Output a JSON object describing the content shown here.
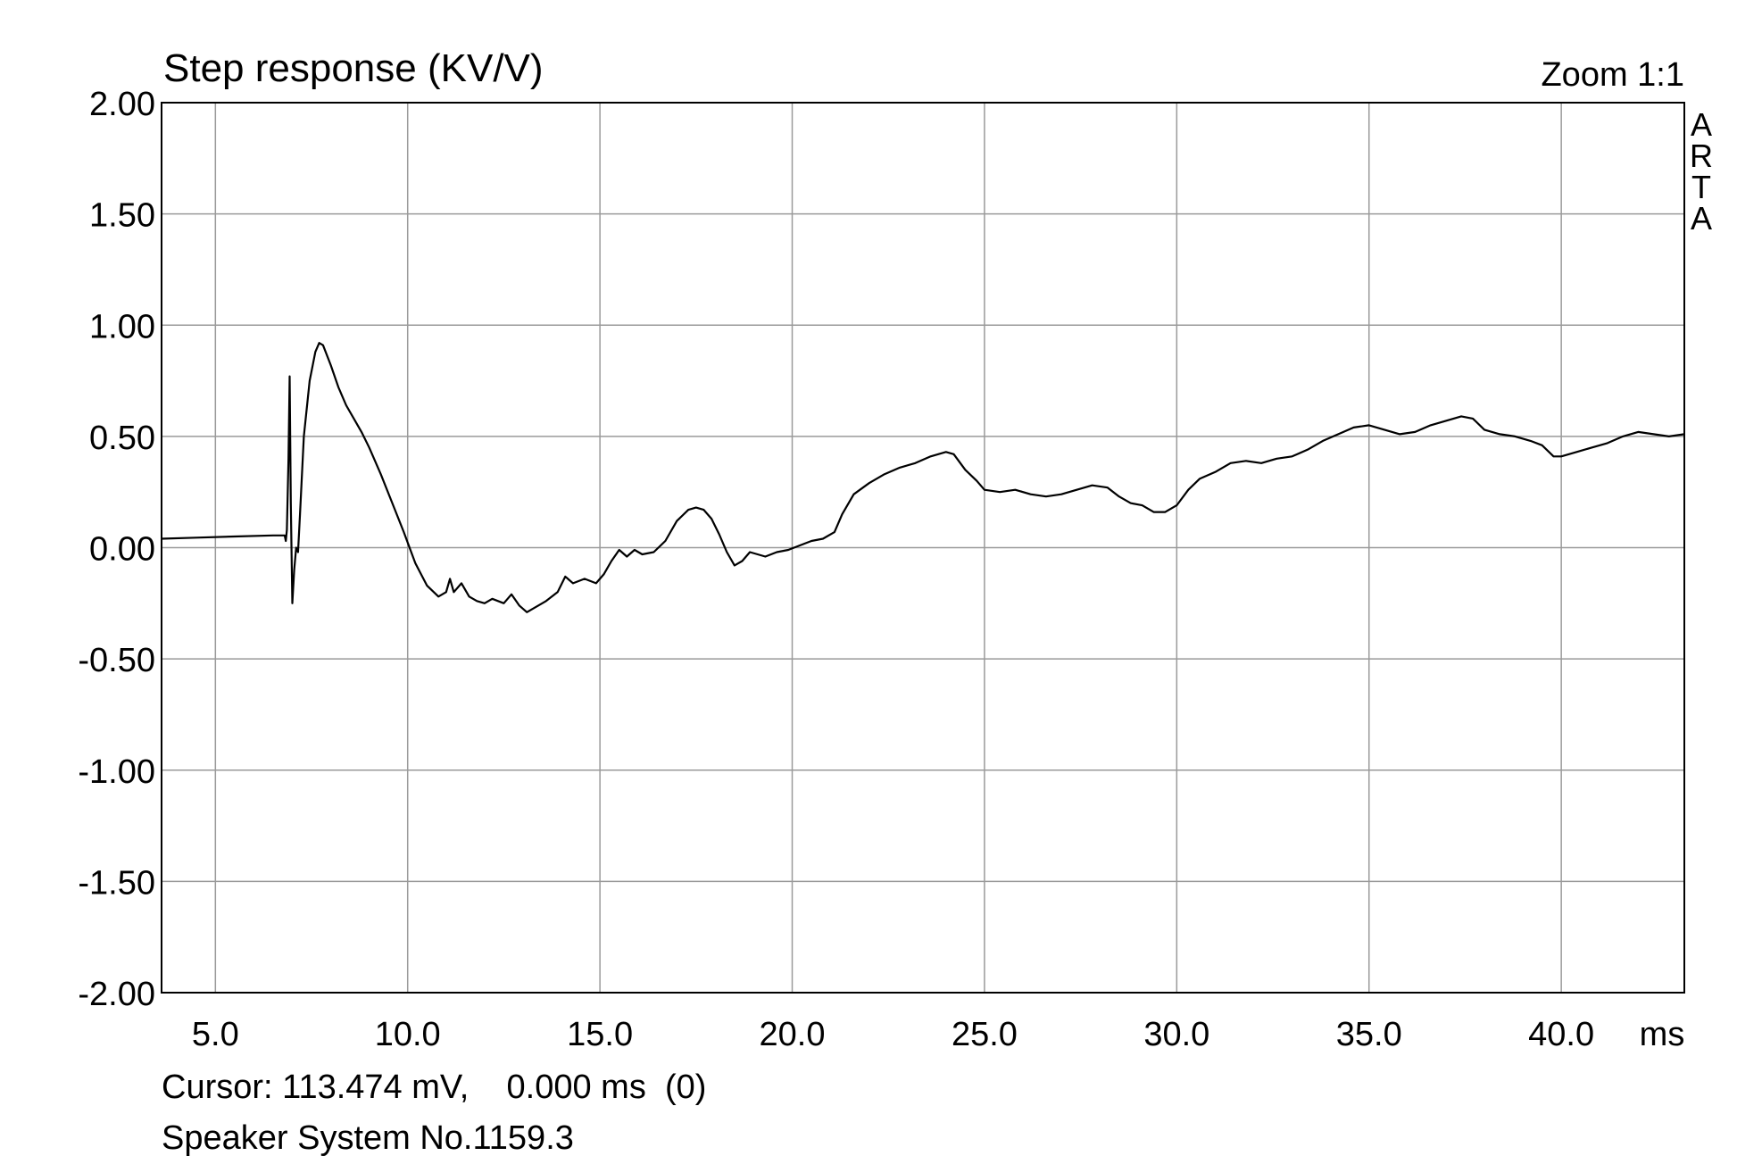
{
  "chart_data": {
    "type": "line",
    "title": "Step response (KV/V)",
    "zoom_label": "Zoom 1:1",
    "brand": [
      "A",
      "R",
      "T",
      "A"
    ],
    "xlabel": "ms",
    "ylabel": "",
    "xlim": [
      3.6,
      43.2
    ],
    "ylim": [
      -2.0,
      2.0
    ],
    "grid": true,
    "x_ticks": [
      5,
      10,
      15,
      20,
      25,
      30,
      35,
      40
    ],
    "x_tick_labels": [
      "5.0",
      "10.0",
      "15.0",
      "20.0",
      "25.0",
      "30.0",
      "35.0",
      "40.0"
    ],
    "y_ticks": [
      2,
      1.5,
      1,
      0.5,
      0,
      -0.5,
      -1,
      -1.5,
      -2
    ],
    "y_tick_labels": [
      "2.00",
      "1.50",
      "1.00",
      "0.50",
      "0.00",
      "-0.50",
      "-1.00",
      "-1.50",
      "-2.00"
    ],
    "cursor_readout": "Cursor: 113.474 mV,    0.000 ms  (0)",
    "caption": "Speaker System No.1159.3",
    "series": [
      {
        "color": "#000000",
        "points": [
          [
            3.6,
            0.04
          ],
          [
            4.5,
            0.045
          ],
          [
            5.5,
            0.05
          ],
          [
            6.5,
            0.055
          ],
          [
            6.8,
            0.055
          ],
          [
            6.83,
            0.03
          ],
          [
            6.86,
            0.08
          ],
          [
            6.9,
            0.4
          ],
          [
            6.93,
            0.77
          ],
          [
            6.96,
            0.2
          ],
          [
            7.0,
            -0.25
          ],
          [
            7.05,
            -0.1
          ],
          [
            7.1,
            0.0
          ],
          [
            7.15,
            -0.02
          ],
          [
            7.2,
            0.15
          ],
          [
            7.3,
            0.5
          ],
          [
            7.45,
            0.75
          ],
          [
            7.6,
            0.88
          ],
          [
            7.7,
            0.92
          ],
          [
            7.8,
            0.91
          ],
          [
            8.0,
            0.82
          ],
          [
            8.2,
            0.72
          ],
          [
            8.4,
            0.64
          ],
          [
            8.6,
            0.58
          ],
          [
            8.8,
            0.52
          ],
          [
            9.0,
            0.45
          ],
          [
            9.3,
            0.33
          ],
          [
            9.6,
            0.2
          ],
          [
            9.9,
            0.07
          ],
          [
            10.2,
            -0.07
          ],
          [
            10.5,
            -0.17
          ],
          [
            10.8,
            -0.22
          ],
          [
            11.0,
            -0.2
          ],
          [
            11.1,
            -0.14
          ],
          [
            11.2,
            -0.2
          ],
          [
            11.4,
            -0.16
          ],
          [
            11.6,
            -0.22
          ],
          [
            11.8,
            -0.24
          ],
          [
            12.0,
            -0.25
          ],
          [
            12.2,
            -0.23
          ],
          [
            12.5,
            -0.25
          ],
          [
            12.7,
            -0.21
          ],
          [
            12.9,
            -0.26
          ],
          [
            13.1,
            -0.29
          ],
          [
            13.3,
            -0.27
          ],
          [
            13.6,
            -0.24
          ],
          [
            13.9,
            -0.2
          ],
          [
            14.1,
            -0.13
          ],
          [
            14.3,
            -0.16
          ],
          [
            14.6,
            -0.14
          ],
          [
            14.9,
            -0.16
          ],
          [
            15.1,
            -0.12
          ],
          [
            15.3,
            -0.06
          ],
          [
            15.5,
            -0.01
          ],
          [
            15.7,
            -0.04
          ],
          [
            15.9,
            -0.01
          ],
          [
            16.1,
            -0.03
          ],
          [
            16.4,
            -0.02
          ],
          [
            16.7,
            0.03
          ],
          [
            17.0,
            0.12
          ],
          [
            17.3,
            0.17
          ],
          [
            17.5,
            0.18
          ],
          [
            17.7,
            0.17
          ],
          [
            17.9,
            0.13
          ],
          [
            18.1,
            0.06
          ],
          [
            18.3,
            -0.02
          ],
          [
            18.5,
            -0.08
          ],
          [
            18.7,
            -0.06
          ],
          [
            18.9,
            -0.02
          ],
          [
            19.1,
            -0.03
          ],
          [
            19.3,
            -0.04
          ],
          [
            19.6,
            -0.02
          ],
          [
            19.9,
            -0.01
          ],
          [
            20.2,
            0.01
          ],
          [
            20.5,
            0.03
          ],
          [
            20.8,
            0.04
          ],
          [
            21.1,
            0.07
          ],
          [
            21.3,
            0.15
          ],
          [
            21.6,
            0.24
          ],
          [
            22.0,
            0.29
          ],
          [
            22.4,
            0.33
          ],
          [
            22.8,
            0.36
          ],
          [
            23.2,
            0.38
          ],
          [
            23.6,
            0.41
          ],
          [
            24.0,
            0.43
          ],
          [
            24.2,
            0.42
          ],
          [
            24.5,
            0.35
          ],
          [
            24.8,
            0.3
          ],
          [
            25.0,
            0.26
          ],
          [
            25.4,
            0.25
          ],
          [
            25.8,
            0.26
          ],
          [
            26.2,
            0.24
          ],
          [
            26.6,
            0.23
          ],
          [
            27.0,
            0.24
          ],
          [
            27.4,
            0.26
          ],
          [
            27.8,
            0.28
          ],
          [
            28.2,
            0.27
          ],
          [
            28.5,
            0.23
          ],
          [
            28.8,
            0.2
          ],
          [
            29.1,
            0.19
          ],
          [
            29.4,
            0.16
          ],
          [
            29.7,
            0.16
          ],
          [
            30.0,
            0.19
          ],
          [
            30.3,
            0.26
          ],
          [
            30.6,
            0.31
          ],
          [
            31.0,
            0.34
          ],
          [
            31.4,
            0.38
          ],
          [
            31.8,
            0.39
          ],
          [
            32.2,
            0.38
          ],
          [
            32.6,
            0.4
          ],
          [
            33.0,
            0.41
          ],
          [
            33.4,
            0.44
          ],
          [
            33.8,
            0.48
          ],
          [
            34.2,
            0.51
          ],
          [
            34.6,
            0.54
          ],
          [
            35.0,
            0.55
          ],
          [
            35.4,
            0.53
          ],
          [
            35.8,
            0.51
          ],
          [
            36.2,
            0.52
          ],
          [
            36.6,
            0.55
          ],
          [
            37.0,
            0.57
          ],
          [
            37.4,
            0.59
          ],
          [
            37.7,
            0.58
          ],
          [
            38.0,
            0.53
          ],
          [
            38.4,
            0.51
          ],
          [
            38.8,
            0.5
          ],
          [
            39.2,
            0.48
          ],
          [
            39.5,
            0.46
          ],
          [
            39.8,
            0.41
          ],
          [
            40.0,
            0.41
          ],
          [
            40.4,
            0.43
          ],
          [
            40.8,
            0.45
          ],
          [
            41.2,
            0.47
          ],
          [
            41.6,
            0.5
          ],
          [
            42.0,
            0.52
          ],
          [
            42.4,
            0.51
          ],
          [
            42.8,
            0.5
          ],
          [
            43.2,
            0.51
          ]
        ]
      }
    ]
  }
}
